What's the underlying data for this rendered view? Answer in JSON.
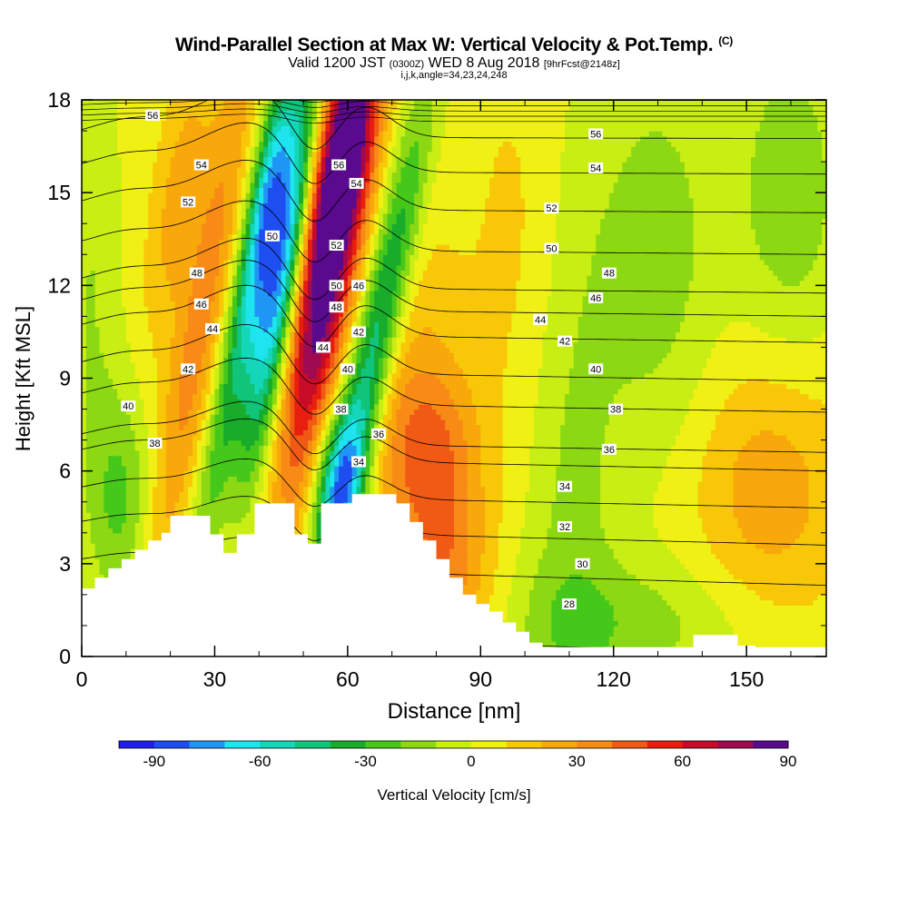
{
  "title": {
    "main": "Wind-Parallel Section at Max W: Vertical Velocity & Pot.Temp.",
    "copyright": "(C)",
    "valid_prefix": "Valid 1200 JST",
    "valid_utc": "(0300Z)",
    "valid_date": "WED 8 Aug 2018",
    "forecast": "[9hrFcst@2148z]",
    "grid": "i,j,k,angle=34,23,24,248"
  },
  "chart_data": {
    "type": "heatmap",
    "xlabel": "Distance [nm]",
    "ylabel": "Height [Kft MSL]",
    "xlim": [
      0,
      168
    ],
    "ylim": [
      0,
      18
    ],
    "x_ticks": [
      "0",
      "30",
      "60",
      "90",
      "120",
      "150"
    ],
    "y_ticks": [
      "0",
      "3",
      "6",
      "9",
      "12",
      "15",
      "18"
    ],
    "colorbar": {
      "label": "Vertical Velocity [cm/s]",
      "tick_labels": [
        "-90",
        "-60",
        "-30",
        "0",
        "30",
        "60",
        "90"
      ],
      "levels": [
        -100,
        -90,
        -80,
        -70,
        -60,
        -50,
        -40,
        -30,
        -20,
        -10,
        0,
        10,
        20,
        30,
        40,
        50,
        60,
        70,
        80,
        90,
        100,
        110
      ],
      "colors": [
        "#1e1ee6",
        "#1e4ef0",
        "#2096f4",
        "#1ee4f0",
        "#14d6b8",
        "#10c47a",
        "#18ac2a",
        "#46c81a",
        "#8cd812",
        "#c8ee14",
        "#f0f014",
        "#f8c808",
        "#f8a80a",
        "#f88a16",
        "#f05a14",
        "#e81e0e",
        "#c80c28",
        "#a00a50",
        "#5a0a8c"
      ]
    },
    "velocity_features": [
      {
        "x": 45,
        "y": 12.5,
        "w": -80,
        "sx": 3.2,
        "sy": 4.5,
        "tilt": 1.1
      },
      {
        "x": 42,
        "y": 15.0,
        "w": -55,
        "sx": 3.0,
        "sy": 3.0,
        "tilt": 1.1
      },
      {
        "x": 55,
        "y": 12.5,
        "w": 85,
        "sx": 4.5,
        "sy": 5.0,
        "tilt": 1.0
      },
      {
        "x": 60,
        "y": 16.5,
        "w": 50,
        "sx": 4.5,
        "sy": 2.5,
        "tilt": 1.0
      },
      {
        "x": 66,
        "y": 10.0,
        "w": -55,
        "sx": 3.5,
        "sy": 5.5,
        "tilt": 1.4
      },
      {
        "x": 58,
        "y": 5.5,
        "w": -60,
        "sx": 4.0,
        "sy": 1.8,
        "tilt": 0.5
      },
      {
        "x": 27,
        "y": 11.0,
        "w": 30,
        "sx": 4.0,
        "sy": 6.5,
        "tilt": 1.2
      },
      {
        "x": 34,
        "y": 9.0,
        "w": -35,
        "sx": 3.0,
        "sy": 5.0,
        "tilt": 1.3
      },
      {
        "x": 22,
        "y": 15.0,
        "w": 20,
        "sx": 4.0,
        "sy": 3.0,
        "tilt": 1.0
      },
      {
        "x": 9,
        "y": 5.0,
        "w": -25,
        "sx": 5.0,
        "sy": 2.5,
        "tilt": 0.0
      },
      {
        "x": 78,
        "y": 6.5,
        "w": 35,
        "sx": 8.0,
        "sy": 2.0,
        "tilt": 0.0
      },
      {
        "x": 82,
        "y": 2.5,
        "w": 30,
        "sx": 7.0,
        "sy": 2.0,
        "tilt": 0.0
      },
      {
        "x": 75,
        "y": 10.0,
        "w": 12,
        "sx": 8.0,
        "sy": 3.0,
        "tilt": 0.0
      },
      {
        "x": 110,
        "y": 5.0,
        "w": -18,
        "sx": 8.0,
        "sy": 9.0,
        "tilt": 0.0
      },
      {
        "x": 130,
        "y": 13.0,
        "w": -20,
        "sx": 10.0,
        "sy": 5.0,
        "tilt": 0.0
      },
      {
        "x": 160,
        "y": 15.0,
        "w": -22,
        "sx": 9.0,
        "sy": 4.0,
        "tilt": 0.0
      },
      {
        "x": 155,
        "y": 5.5,
        "w": 22,
        "sx": 12.0,
        "sy": 3.0,
        "tilt": 0.0
      },
      {
        "x": 125,
        "y": 1.0,
        "w": -18,
        "sx": 20.0,
        "sy": 1.5,
        "tilt": 0.0
      },
      {
        "x": 100,
        "y": 13.0,
        "w": 10,
        "sx": 8.0,
        "sy": 5.0,
        "tilt": 0.0
      },
      {
        "x": 2,
        "y": 12.0,
        "w": -15,
        "sx": 5.0,
        "sy": 6.0,
        "tilt": 0.0
      }
    ],
    "terrain_kft": [
      [
        0,
        2.2
      ],
      [
        3,
        2.2
      ],
      [
        3,
        2.55
      ],
      [
        6,
        2.55
      ],
      [
        6,
        2.85
      ],
      [
        9,
        2.85
      ],
      [
        9,
        3.15
      ],
      [
        12,
        3.15
      ],
      [
        12,
        3.45
      ],
      [
        15,
        3.45
      ],
      [
        15,
        3.75
      ],
      [
        18,
        3.75
      ],
      [
        18,
        4.0
      ],
      [
        20,
        4.0
      ],
      [
        20,
        4.55
      ],
      [
        29,
        4.55
      ],
      [
        29,
        3.95
      ],
      [
        32,
        3.95
      ],
      [
        32,
        3.35
      ],
      [
        35,
        3.35
      ],
      [
        35,
        3.95
      ],
      [
        39,
        3.95
      ],
      [
        39,
        4.95
      ],
      [
        48,
        4.95
      ],
      [
        48,
        3.95
      ],
      [
        51,
        3.95
      ],
      [
        51,
        3.65
      ],
      [
        54,
        3.65
      ],
      [
        54,
        4.95
      ],
      [
        61,
        4.95
      ],
      [
        61,
        5.25
      ],
      [
        71,
        5.25
      ],
      [
        71,
        4.95
      ],
      [
        74,
        4.95
      ],
      [
        74,
        4.35
      ],
      [
        77,
        4.35
      ],
      [
        77,
        3.75
      ],
      [
        80,
        3.75
      ],
      [
        80,
        3.15
      ],
      [
        83,
        3.15
      ],
      [
        83,
        2.55
      ],
      [
        86,
        2.55
      ],
      [
        86,
        2.0
      ],
      [
        89,
        2.0
      ],
      [
        89,
        1.7
      ],
      [
        92,
        1.7
      ],
      [
        92,
        1.45
      ],
      [
        95,
        1.45
      ],
      [
        95,
        1.1
      ],
      [
        98,
        1.1
      ],
      [
        98,
        0.8
      ],
      [
        101,
        0.8
      ],
      [
        101,
        0.45
      ],
      [
        104,
        0.45
      ],
      [
        104,
        0.3
      ],
      [
        138,
        0.3
      ],
      [
        138,
        0.7
      ],
      [
        148,
        0.7
      ],
      [
        148,
        0.35
      ],
      [
        152,
        0.35
      ],
      [
        152,
        0.3
      ],
      [
        168,
        0.3
      ]
    ],
    "isentropes": [
      {
        "theta": 28,
        "y0": 0.9,
        "dy": -0.9
      },
      {
        "theta": 30,
        "y0": 3.0,
        "dy": -0.7
      },
      {
        "theta": 32,
        "y0": 4.2,
        "dy": -0.6
      },
      {
        "theta": 34,
        "y0": 5.3,
        "dy": -0.5
      },
      {
        "theta": 36,
        "y0": 6.5,
        "dy": -0.5
      },
      {
        "theta": 38,
        "y0": 7.0,
        "dy": -0.4
      },
      {
        "theta": 40,
        "y0": 8.3,
        "dy": -0.4
      },
      {
        "theta": 42,
        "y0": 9.3,
        "dy": -0.4
      },
      {
        "theta": 44,
        "y0": 10.5,
        "dy": -0.35
      },
      {
        "theta": 46,
        "y0": 11.3,
        "dy": -0.3
      },
      {
        "theta": 48,
        "y0": 12.0,
        "dy": -0.25
      },
      {
        "theta": 50,
        "y0": 13.2,
        "dy": -0.2
      },
      {
        "theta": 52,
        "y0": 14.5,
        "dy": -0.15
      },
      {
        "theta": 54,
        "y0": 15.7,
        "dy": -0.1
      },
      {
        "theta": 56,
        "y0": 16.8,
        "dy": -0.05
      }
    ],
    "contour_labels": [
      {
        "text": "56",
        "x": 16,
        "y": 17.5
      },
      {
        "text": "54",
        "x": 27,
        "y": 15.9
      },
      {
        "text": "52",
        "x": 24,
        "y": 14.7
      },
      {
        "text": "50",
        "x": 43,
        "y": 13.6
      },
      {
        "text": "48",
        "x": 26,
        "y": 12.4
      },
      {
        "text": "46",
        "x": 27,
        "y": 11.4
      },
      {
        "text": "44",
        "x": 29.5,
        "y": 10.6
      },
      {
        "text": "42",
        "x": 24,
        "y": 9.3
      },
      {
        "text": "40",
        "x": 10.5,
        "y": 8.1
      },
      {
        "text": "38",
        "x": 16.5,
        "y": 6.9
      },
      {
        "text": "56",
        "x": 58,
        "y": 15.9
      },
      {
        "text": "54",
        "x": 62,
        "y": 15.3
      },
      {
        "text": "52",
        "x": 57.5,
        "y": 13.3
      },
      {
        "text": "50",
        "x": 57.5,
        "y": 12.0
      },
      {
        "text": "48",
        "x": 57.5,
        "y": 11.3
      },
      {
        "text": "46",
        "x": 62.5,
        "y": 12.0
      },
      {
        "text": "44",
        "x": 54.5,
        "y": 10.0
      },
      {
        "text": "42",
        "x": 62.5,
        "y": 10.5
      },
      {
        "text": "40",
        "x": 60,
        "y": 9.3
      },
      {
        "text": "38",
        "x": 58.5,
        "y": 8.0
      },
      {
        "text": "36",
        "x": 67,
        "y": 7.2
      },
      {
        "text": "34",
        "x": 62.5,
        "y": 6.3
      },
      {
        "text": "56",
        "x": 116,
        "y": 16.9
      },
      {
        "text": "54",
        "x": 116,
        "y": 15.8
      },
      {
        "text": "52",
        "x": 106,
        "y": 14.5
      },
      {
        "text": "50",
        "x": 106,
        "y": 13.2
      },
      {
        "text": "48",
        "x": 119,
        "y": 12.4
      },
      {
        "text": "46",
        "x": 116,
        "y": 11.6
      },
      {
        "text": "44",
        "x": 103.5,
        "y": 10.9
      },
      {
        "text": "42",
        "x": 109,
        "y": 10.2
      },
      {
        "text": "40",
        "x": 116,
        "y": 9.3
      },
      {
        "text": "38",
        "x": 120.5,
        "y": 8.0
      },
      {
        "text": "36",
        "x": 119,
        "y": 6.7
      },
      {
        "text": "34",
        "x": 109,
        "y": 5.5
      },
      {
        "text": "32",
        "x": 109,
        "y": 4.2
      },
      {
        "text": "30",
        "x": 113,
        "y": 3.0
      },
      {
        "text": "28",
        "x": 110,
        "y": 1.7
      }
    ]
  }
}
